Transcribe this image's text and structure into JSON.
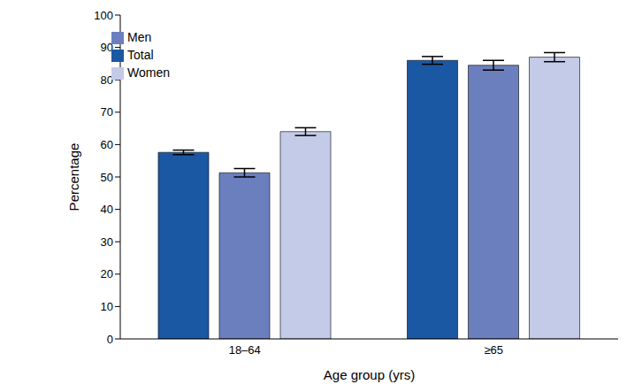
{
  "chart_data": {
    "type": "bar",
    "x_label": "Age group (yrs)",
    "y_label": "Percentage",
    "categories": [
      "18–64",
      "≥65"
    ],
    "series": [
      {
        "name": "Total",
        "color": "#1b58a3",
        "values": [
          57.6,
          86.0
        ],
        "errors": [
          0.7,
          1.2
        ]
      },
      {
        "name": "Men",
        "color": "#6b7fbf",
        "values": [
          51.3,
          84.5
        ],
        "errors": [
          1.3,
          1.5
        ]
      },
      {
        "name": "Women",
        "color": "#c4cbe8",
        "values": [
          64.0,
          87.0
        ],
        "errors": [
          1.2,
          1.4
        ]
      }
    ],
    "ylim": [
      0,
      100
    ],
    "yticks": [
      0,
      10,
      20,
      30,
      40,
      50,
      60,
      70,
      80,
      90,
      100
    ],
    "grid": false,
    "legend": "upper left"
  }
}
